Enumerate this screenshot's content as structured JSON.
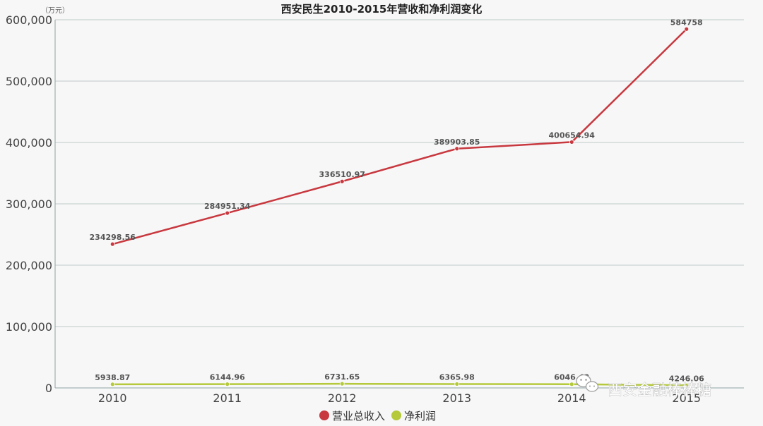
{
  "chart_data": {
    "type": "line",
    "title": "西安民生2010-2015年营收和净利润变化",
    "unit": "（万元）",
    "categories": [
      "2010",
      "2011",
      "2012",
      "2013",
      "2014",
      "2015"
    ],
    "ylim": [
      0,
      600000
    ],
    "yticks": [
      "0",
      "100,000",
      "200,000",
      "300,000",
      "400,000",
      "500,000",
      "600,000"
    ],
    "ytick_values": [
      0,
      100000,
      200000,
      300000,
      400000,
      500000,
      600000
    ],
    "grid": true,
    "legend_position": "bottom-center",
    "series": [
      {
        "name": "营业总收入",
        "color": "#c8383f",
        "values": [
          234298.56,
          284951.34,
          336510.97,
          389903.85,
          400654.94,
          584758
        ],
        "labels": [
          "234298.56",
          "284951.34",
          "336510.97",
          "389903.85",
          "400654.94",
          "584758"
        ]
      },
      {
        "name": "净利润",
        "color": "#b5c93a",
        "values": [
          5938.87,
          6144.96,
          6731.65,
          6365.98,
          6046.42,
          4246.06
        ],
        "labels": [
          "5938.87",
          "6144.96",
          "6731.65",
          "6365.98",
          "6046.42",
          "4246.06"
        ]
      }
    ]
  },
  "watermark": {
    "text": "西安金融棒棒糖",
    "icon": "wechat-icon"
  }
}
